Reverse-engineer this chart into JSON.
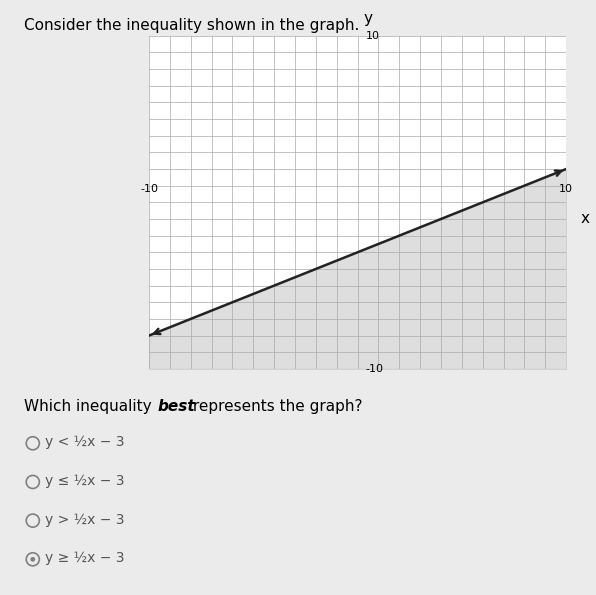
{
  "title": "Consider the inequality shown in the graph.",
  "question": "Which inequality best represents the graph?",
  "slope": 0.5,
  "intercept": -3,
  "xlim": [
    -10,
    10
  ],
  "ylim": [
    -10,
    10
  ],
  "line_color": "#222222",
  "shade_color": "#c8c8c8",
  "shade_alpha": 0.6,
  "grid_color": "#aaaaaa",
  "background_color": "#ebebeb",
  "answer_choices": [
    "y < ½x − 3",
    "y ≤ ½x − 3",
    "y > ½x − 3",
    "y ≥ ½x − 3"
  ],
  "selected_index": 3,
  "title_fontsize": 11,
  "question_fontsize": 11,
  "answer_fontsize": 10
}
